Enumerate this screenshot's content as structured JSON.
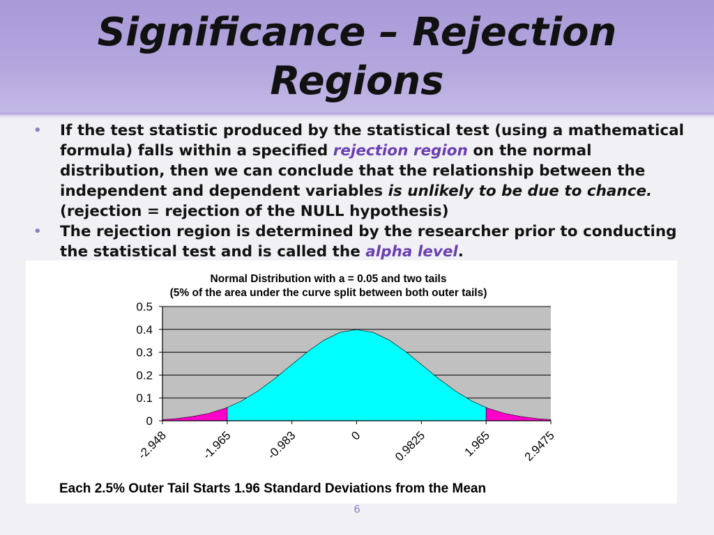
{
  "slide": {
    "title_line1": "Significance – Rejection",
    "title_line2": "Regions",
    "bullets": [
      {
        "text_a": "If the test statistic produced by the statistical test (using a mathematical formula)  falls within a specified ",
        "highlight": "rejection region",
        "text_b": " on the normal distribution, then we can conclude that the relationship between the independent and dependent variables ",
        "emphasis": "is unlikely to be due to chance.",
        "text_c": " (rejection = rejection of the NULL hypothesis)"
      },
      {
        "text_a": "The rejection region is determined by the researcher prior to conducting the statistical test and is called the ",
        "highlight": "alpha level",
        "text_b": "."
      }
    ],
    "page_number": "6"
  },
  "colors": {
    "accent": "#6a3fb0",
    "curve_fill": "#00ffff",
    "tail_fill": "#ff00cc",
    "plot_bg": "#c0c0c0"
  },
  "chart_data": {
    "type": "area",
    "title": "Normal Distribution with a = 0.05 and two tails",
    "subtitle": "(5% of the area under the curve split between both outer tails)",
    "caption": "Each 2.5% Outer Tail Starts 1.96 Standard Deviations from the Mean",
    "x_tick_labels": [
      "-2.948",
      "-1.965",
      "-0.983",
      "0",
      "0.9825",
      "1.965",
      "2.9475"
    ],
    "x_tick_values": [
      -2.948,
      -1.965,
      -0.983,
      0,
      0.9825,
      1.965,
      2.9475
    ],
    "xlim": [
      -2.948,
      2.9475
    ],
    "y_tick_labels": [
      "0",
      "0.1",
      "0.2",
      "0.3",
      "0.4",
      "0.5"
    ],
    "ylim": [
      0,
      0.5
    ],
    "grid": true,
    "critical_value": 1.965,
    "series": [
      {
        "values_x": [
          -2.948,
          -2.75,
          -2.5,
          -2.25,
          -2.0,
          -1.965,
          -1.75,
          -1.5,
          -1.25,
          -1.0,
          -0.75,
          -0.5,
          -0.25,
          0,
          0.25,
          0.5,
          0.75,
          1.0,
          1.25,
          1.5,
          1.75,
          1.965,
          2.0,
          2.25,
          2.5,
          2.75,
          2.9475
        ],
        "values_y": [
          0.005,
          0.009,
          0.018,
          0.032,
          0.054,
          0.058,
          0.086,
          0.13,
          0.183,
          0.242,
          0.301,
          0.352,
          0.387,
          0.399,
          0.387,
          0.352,
          0.301,
          0.242,
          0.183,
          0.13,
          0.086,
          0.058,
          0.054,
          0.032,
          0.018,
          0.009,
          0.005
        ]
      }
    ]
  }
}
